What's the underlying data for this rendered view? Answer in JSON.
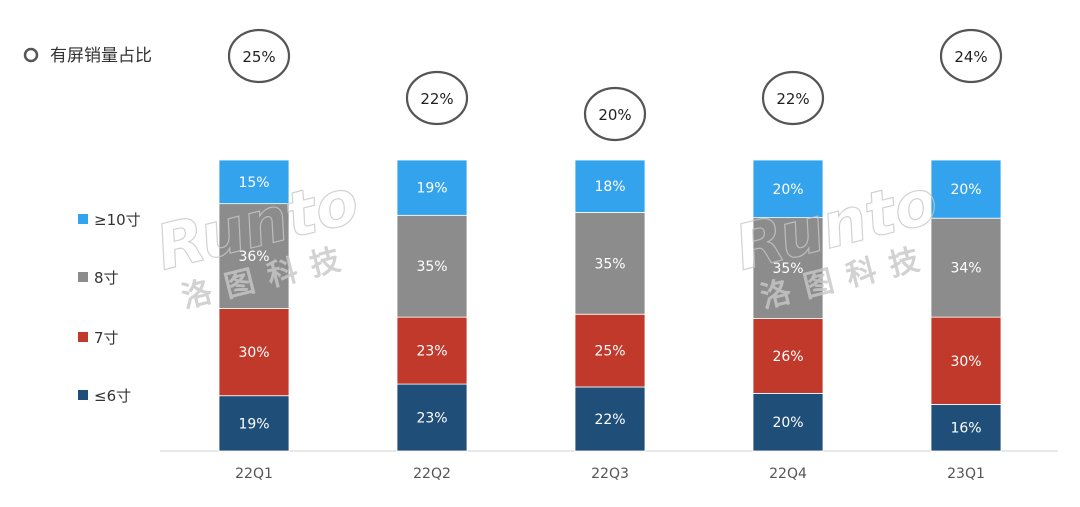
{
  "chart_data": {
    "type": "bar",
    "stacked": true,
    "title": "有屏销量占比",
    "categories": [
      "22Q1",
      "22Q2",
      "22Q3",
      "22Q4",
      "23Q1"
    ],
    "series": [
      {
        "name": "≤6寸",
        "color": "#1f4e79",
        "values": [
          19,
          23,
          22,
          20,
          16
        ],
        "labels": [
          "19%",
          "23%",
          "22%",
          "20%",
          "16%"
        ]
      },
      {
        "name": "7寸",
        "color": "#c0392b",
        "values": [
          30,
          23,
          25,
          26,
          30
        ],
        "labels": [
          "30%",
          "23%",
          "25%",
          "26%",
          "30%"
        ]
      },
      {
        "name": "8寸",
        "color": "#8c8c8c",
        "values": [
          36,
          35,
          35,
          35,
          34
        ],
        "labels": [
          "36%",
          "35%",
          "35%",
          "35%",
          "34%"
        ]
      },
      {
        "name": "≥10寸",
        "color": "#33a3ee",
        "values": [
          15,
          19,
          18,
          20,
          20
        ],
        "labels": [
          "15%",
          "19%",
          "18%",
          "20%",
          "20%"
        ]
      }
    ],
    "screen_share": {
      "values": [
        25,
        22,
        20,
        22,
        24
      ],
      "labels": [
        "25%",
        "22%",
        "20%",
        "22%",
        "24%"
      ]
    },
    "ylim": [
      0,
      100
    ],
    "grid": false,
    "legend_position": "left"
  },
  "legend": {
    "title_marker": "○",
    "items": [
      "≥10寸",
      "8寸",
      "7寸",
      "≤6寸"
    ]
  },
  "watermark": {
    "text": "Runto",
    "sub": "洛图科技"
  }
}
